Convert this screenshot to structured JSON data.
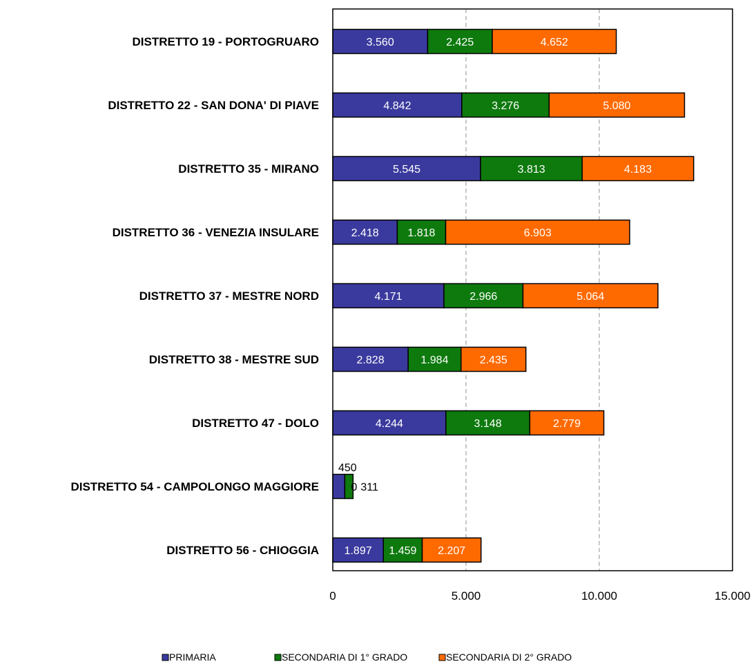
{
  "chart_data": {
    "type": "bar",
    "orientation": "horizontal",
    "stacked": true,
    "categories": [
      "DISTRETTO 19 - PORTOGRUARO",
      "DISTRETTO 22 - SAN DONA' DI PIAVE",
      "DISTRETTO 35 - MIRANO",
      "DISTRETTO 36 - VENEZIA INSULARE",
      "DISTRETTO 37 - MESTRE NORD",
      "DISTRETTO 38 - MESTRE SUD",
      "DISTRETTO 47 - DOLO",
      "DISTRETTO 54 - CAMPOLONGO MAGGIORE",
      "DISTRETTO 56 - CHIOGGIA"
    ],
    "series": [
      {
        "name": "PRIMARIA",
        "color": "#3a3a9e",
        "values": [
          3560,
          4842,
          5545,
          2418,
          4171,
          2828,
          4244,
          450,
          1897
        ],
        "labels": [
          "3.560",
          "4.842",
          "5.545",
          "2.418",
          "4.171",
          "2.828",
          "4.244",
          "450",
          "1.897"
        ]
      },
      {
        "name": "SECONDARIA DI 1° GRADO",
        "color": "#0e7a0e",
        "values": [
          2425,
          3276,
          3813,
          1818,
          2966,
          1984,
          3148,
          311,
          1459
        ],
        "labels": [
          "2.425",
          "3.276",
          "3.813",
          "1.818",
          "2.966",
          "1.984",
          "3.148",
          "311",
          "1.459"
        ]
      },
      {
        "name": "SECONDARIA DI 2° GRADO",
        "color": "#ff6a00",
        "values": [
          4652,
          5080,
          4183,
          6903,
          5064,
          2435,
          2779,
          0,
          2207
        ],
        "labels": [
          "4.652",
          "5.080",
          "4.183",
          "6.903",
          "5.064",
          "2.435",
          "2.779",
          "0",
          "2.207"
        ]
      }
    ],
    "xlim": [
      0,
      15000
    ],
    "xticks": [
      0,
      5000,
      10000,
      15000
    ],
    "xtick_labels": [
      "0",
      "5.000",
      "10.000",
      "15.000"
    ],
    "gridlines": "vertical dashed",
    "legend_position": "bottom",
    "title": "",
    "xlabel": "",
    "ylabel": ""
  }
}
